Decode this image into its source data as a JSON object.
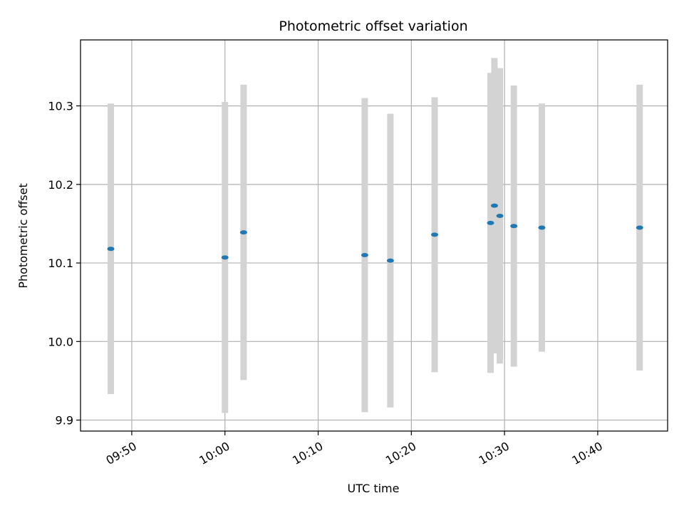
{
  "chart_data": {
    "type": "scatter",
    "title": "Photometric offset variation",
    "xlabel": "UTC time",
    "ylabel": "Photometric offset",
    "grid": true,
    "legend": "none",
    "x_ticks": [
      "09:50",
      "10:00",
      "10:10",
      "10:20",
      "10:30",
      "10:40"
    ],
    "y_ticks": [
      "9.9",
      "10.0",
      "10.1",
      "10.2",
      "10.3"
    ],
    "xlim": [
      "09:44:30",
      "10:47:30"
    ],
    "ylim": [
      9.886,
      10.384
    ],
    "colors": {
      "point": "#1f77b4",
      "errorbar": "#d3d3d3",
      "grid": "#b0b0b0"
    },
    "points": [
      {
        "time": "09:47:45",
        "y": 10.118,
        "err": 0.185
      },
      {
        "time": "10:00:00",
        "y": 10.107,
        "err": 0.198
      },
      {
        "time": "10:02:00",
        "y": 10.139,
        "err": 0.188
      },
      {
        "time": "10:15:00",
        "y": 10.11,
        "err": 0.2
      },
      {
        "time": "10:17:45",
        "y": 10.103,
        "err": 0.187
      },
      {
        "time": "10:22:30",
        "y": 10.136,
        "err": 0.175
      },
      {
        "time": "10:28:30",
        "y": 10.151,
        "err": 0.191
      },
      {
        "time": "10:28:55",
        "y": 10.173,
        "err": 0.188
      },
      {
        "time": "10:29:30",
        "y": 10.16,
        "err": 0.188
      },
      {
        "time": "10:31:00",
        "y": 10.147,
        "err": 0.179
      },
      {
        "time": "10:34:00",
        "y": 10.145,
        "err": 0.158
      },
      {
        "time": "10:44:30",
        "y": 10.145,
        "err": 0.182
      }
    ]
  }
}
